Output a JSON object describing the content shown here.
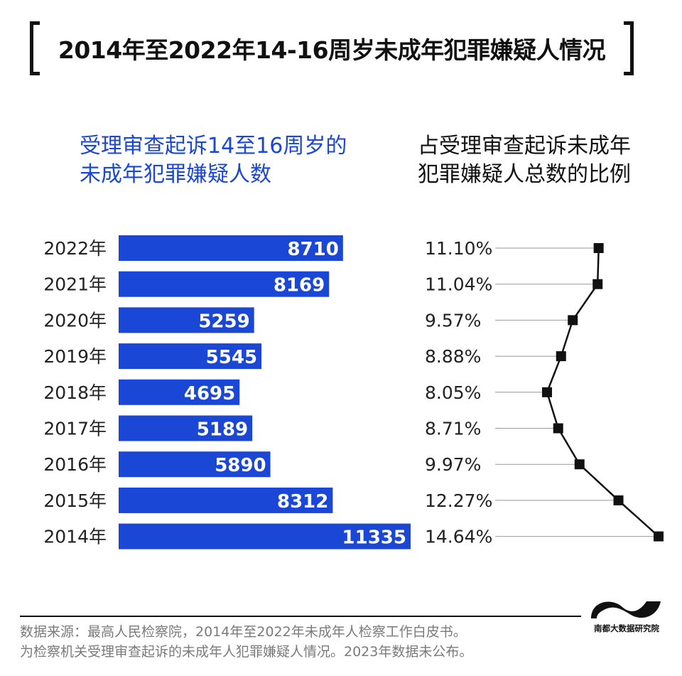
{
  "title": "2014年至2022年14-16周岁未成年犯罪嫌疑人情况",
  "headers": {
    "left_line1": "受理审查起诉14至16周岁的",
    "left_line2": "未成年犯罪嫌疑人数",
    "right_line1": "占受理审查起诉未成年",
    "right_line2": "犯罪嫌疑人总数的比例"
  },
  "colors": {
    "bar": "#1a47d6",
    "line": "#111111",
    "guide": "#999999"
  },
  "chart_data": [
    {
      "type": "bar",
      "orientation": "horizontal",
      "categories": [
        "2022年",
        "2021年",
        "2020年",
        "2019年",
        "2018年",
        "2017年",
        "2016年",
        "2015年",
        "2014年"
      ],
      "values": [
        8710,
        8169,
        5259,
        5545,
        4695,
        5189,
        5890,
        8312,
        11335
      ],
      "value_labels": [
        "8710",
        "8169",
        "5259",
        "5545",
        "4695",
        "5189",
        "5890",
        "8312",
        "11335"
      ],
      "title": "受理审查起诉14至16周岁的未成年犯罪嫌疑人数"
    },
    {
      "type": "line",
      "categories": [
        "2022年",
        "2021年",
        "2020年",
        "2019年",
        "2018年",
        "2017年",
        "2016年",
        "2015年",
        "2014年"
      ],
      "values": [
        11.1,
        11.04,
        9.57,
        8.88,
        8.05,
        8.71,
        9.97,
        12.27,
        14.64
      ],
      "value_labels": [
        "11.10%",
        "11.04%",
        "9.57%",
        "8.88%",
        "8.05%",
        "8.71%",
        "9.97%",
        "12.27%",
        "14.64%"
      ],
      "title": "占受理审查起诉未成年犯罪嫌疑人总数的比例"
    }
  ],
  "source": {
    "line1": "数据来源：最高人民检察院，2014年至2022年未成年人检察工作白皮书。",
    "line2": "为检察机关受理审查起诉的未成年人犯罪嫌疑人情况。2023年数据未公布。"
  },
  "logo": {
    "text": "南都大数据研究院"
  }
}
